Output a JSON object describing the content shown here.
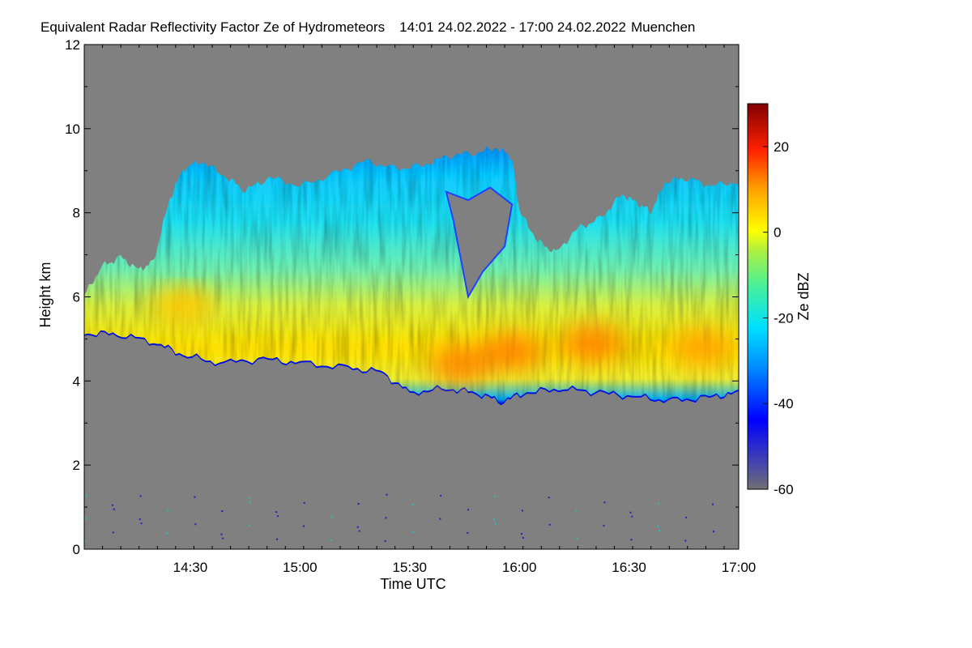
{
  "chart_data": {
    "type": "heatmap",
    "title": "Equivalent Radar Reflectivity Factor Ze of Hydrometeors",
    "time_range": "14:01 24.02.2022 - 17:00 24.02.2022",
    "location": "Muenchen",
    "xlabel": "Time UTC",
    "ylabel": "Height km",
    "xlim_minutes_utc": [
      841,
      1020
    ],
    "ylim": [
      0,
      12
    ],
    "x_ticks": [
      {
        "label": "14:30",
        "minutes": 870
      },
      {
        "label": "15:00",
        "minutes": 900
      },
      {
        "label": "15:30",
        "minutes": 930
      },
      {
        "label": "16:00",
        "minutes": 960
      },
      {
        "label": "16:30",
        "minutes": 990
      },
      {
        "label": "17:00",
        "minutes": 1020
      }
    ],
    "y_ticks": [
      {
        "label": "0",
        "value": 0
      },
      {
        "label": "2",
        "value": 2
      },
      {
        "label": "4",
        "value": 4
      },
      {
        "label": "6",
        "value": 6
      },
      {
        "label": "8",
        "value": 8
      },
      {
        "label": "10",
        "value": 10
      },
      {
        "label": "12",
        "value": 12
      }
    ],
    "colorbar": {
      "label": "Ze dBZ",
      "range": [
        -60,
        30
      ],
      "ticks": [
        {
          "label": "20",
          "value": 20
        },
        {
          "label": "0",
          "value": 0
        },
        {
          "label": "-20",
          "value": -20
        },
        {
          "label": "-40",
          "value": -40
        },
        {
          "label": "-60",
          "value": -60
        }
      ]
    },
    "background_color": "#808080",
    "cloud_layer": {
      "description_units": "minutes UTC / km",
      "base_km": [
        [
          841,
          5.1
        ],
        [
          850,
          5.1
        ],
        [
          860,
          4.9
        ],
        [
          868,
          4.6
        ],
        [
          878,
          4.4
        ],
        [
          890,
          4.5
        ],
        [
          900,
          4.4
        ],
        [
          912,
          4.3
        ],
        [
          922,
          4.2
        ],
        [
          930,
          3.7
        ],
        [
          940,
          3.8
        ],
        [
          948,
          3.7
        ],
        [
          955,
          3.5
        ],
        [
          962,
          3.7
        ],
        [
          972,
          3.8
        ],
        [
          982,
          3.7
        ],
        [
          992,
          3.6
        ],
        [
          1002,
          3.5
        ],
        [
          1012,
          3.6
        ],
        [
          1020,
          3.7
        ]
      ],
      "top_km": [
        [
          841,
          6.0
        ],
        [
          846,
          6.7
        ],
        [
          851,
          6.9
        ],
        [
          856,
          6.6
        ],
        [
          860,
          6.8
        ],
        [
          864,
          8.2
        ],
        [
          868,
          9.0
        ],
        [
          873,
          9.2
        ],
        [
          880,
          8.8
        ],
        [
          885,
          8.5
        ],
        [
          892,
          8.8
        ],
        [
          900,
          8.6
        ],
        [
          910,
          8.9
        ],
        [
          918,
          9.2
        ],
        [
          926,
          9.0
        ],
        [
          934,
          9.1
        ],
        [
          940,
          9.3
        ],
        [
          948,
          9.4
        ],
        [
          954,
          9.5
        ],
        [
          958,
          9.3
        ],
        [
          960,
          8.0
        ],
        [
          965,
          7.3
        ],
        [
          970,
          7.0
        ],
        [
          976,
          7.6
        ],
        [
          982,
          7.8
        ],
        [
          988,
          8.4
        ],
        [
          992,
          8.2
        ],
        [
          996,
          8.0
        ],
        [
          1000,
          8.7
        ],
        [
          1006,
          8.8
        ],
        [
          1012,
          8.6
        ],
        [
          1020,
          8.7
        ]
      ],
      "gap_region_km": [
        [
          940,
          8.5
        ],
        [
          946,
          8.3
        ],
        [
          952,
          8.6
        ],
        [
          958,
          8.2
        ],
        [
          956,
          7.2
        ],
        [
          950,
          6.6
        ],
        [
          946,
          6.0
        ],
        [
          944,
          6.9
        ],
        [
          942,
          7.8
        ]
      ],
      "peak_cores_dbz": [
        {
          "time_min": 868,
          "height_km": 5.8,
          "dbz": 0
        },
        {
          "time_min": 944,
          "height_km": 4.4,
          "dbz": 8
        },
        {
          "time_min": 958,
          "height_km": 4.7,
          "dbz": 9
        },
        {
          "time_min": 980,
          "height_km": 4.9,
          "dbz": 8
        },
        {
          "time_min": 1010,
          "height_km": 4.8,
          "dbz": 4
        }
      ]
    }
  }
}
